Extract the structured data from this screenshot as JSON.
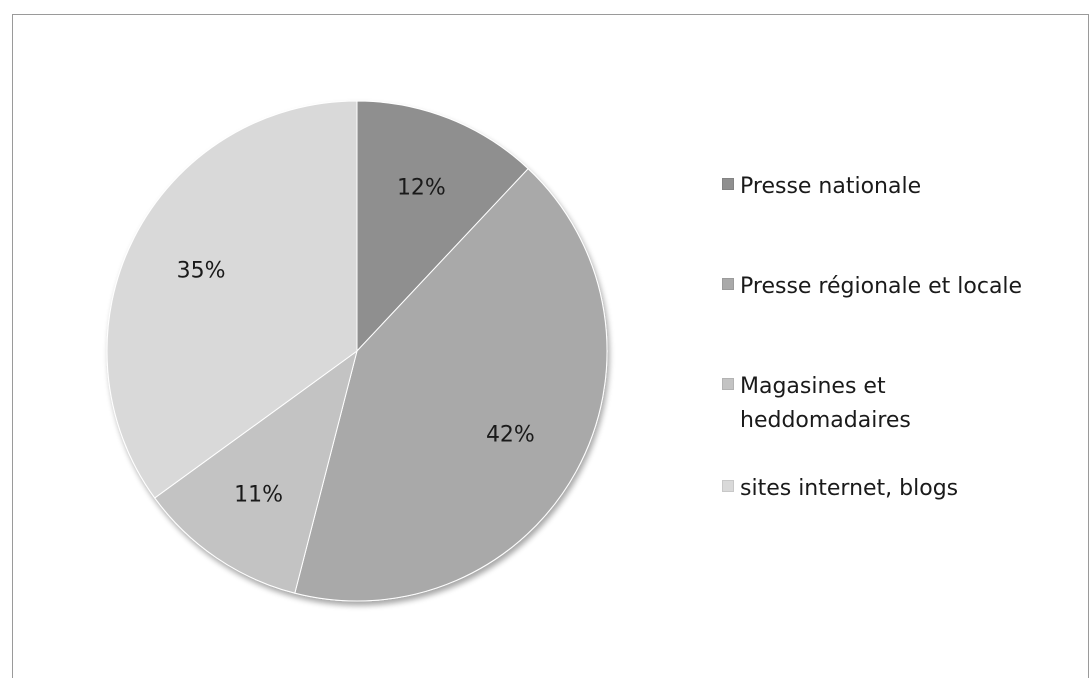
{
  "chart_data": {
    "type": "pie",
    "categories": [
      "Presse nationale",
      "Presse régionale et locale",
      "Magasines et heddomadaires",
      "sites internet, blogs"
    ],
    "values": [
      12,
      42,
      11,
      35
    ],
    "labels": [
      "12%",
      "42%",
      "11%",
      "35%"
    ],
    "colors": [
      "#8f8f8f",
      "#a9a9a9",
      "#c3c3c3",
      "#d9d9d9"
    ],
    "start_angle": "12 o'clock",
    "direction": "clockwise",
    "legend_position": "right"
  },
  "legend": {
    "items": [
      {
        "label": "Presse nationale",
        "color": "#8f8f8f"
      },
      {
        "label": "Presse régionale et locale",
        "color": "#a9a9a9"
      },
      {
        "label": "Magasines et heddomadaires",
        "color": "#c3c3c3"
      },
      {
        "label": "sites internet, blogs",
        "color": "#d9d9d9"
      }
    ]
  }
}
